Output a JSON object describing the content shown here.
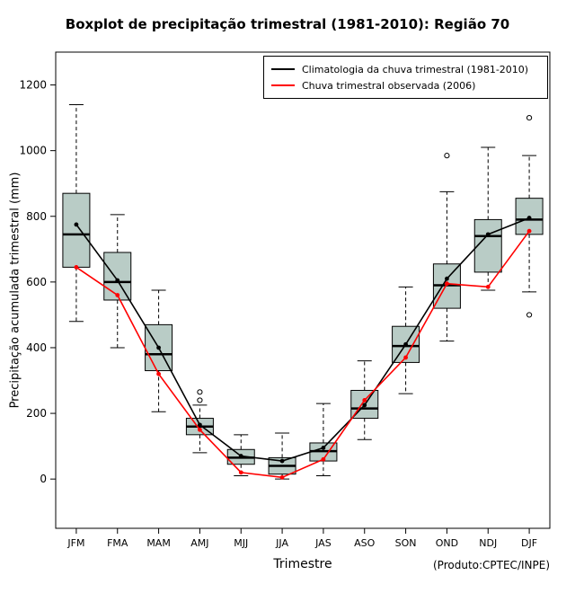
{
  "chart_data": {
    "type": "boxplot",
    "title": "Boxplot de precipitação trimestral (1981-2010): Região 70",
    "xlabel": "Trimestre",
    "ylabel": "Precipitação acumulada trimestral (mm)",
    "credit": "(Produto:CPTEC/INPE)",
    "categories": [
      "JFM",
      "FMA",
      "MAM",
      "AMJ",
      "MJJ",
      "JJA",
      "JAS",
      "ASO",
      "SON",
      "OND",
      "NDJ",
      "DJF"
    ],
    "yticks": [
      0,
      200,
      400,
      600,
      800,
      1000,
      1200
    ],
    "ylim": [
      -150,
      1300
    ],
    "grid": false,
    "legend_position": "top-right",
    "box_fill": "#b9ccc6",
    "box_stroke": "#000000",
    "boxes": [
      {
        "low": 480,
        "q1": 645,
        "median": 745,
        "q3": 870,
        "high": 1140,
        "outliers": []
      },
      {
        "low": 400,
        "q1": 545,
        "median": 600,
        "q3": 690,
        "high": 805,
        "outliers": []
      },
      {
        "low": 205,
        "q1": 330,
        "median": 380,
        "q3": 470,
        "high": 575,
        "outliers": []
      },
      {
        "low": 80,
        "q1": 135,
        "median": 160,
        "q3": 185,
        "high": 225,
        "outliers": [
          240,
          265
        ]
      },
      {
        "low": 10,
        "q1": 45,
        "median": 65,
        "q3": 90,
        "high": 135,
        "outliers": []
      },
      {
        "low": 0,
        "q1": 15,
        "median": 40,
        "q3": 65,
        "high": 140,
        "outliers": []
      },
      {
        "low": 10,
        "q1": 55,
        "median": 85,
        "q3": 110,
        "high": 230,
        "outliers": []
      },
      {
        "low": 120,
        "q1": 185,
        "median": 215,
        "q3": 270,
        "high": 360,
        "outliers": []
      },
      {
        "low": 260,
        "q1": 355,
        "median": 405,
        "q3": 465,
        "high": 585,
        "outliers": []
      },
      {
        "low": 420,
        "q1": 520,
        "median": 590,
        "q3": 655,
        "high": 875,
        "outliers": [
          985
        ]
      },
      {
        "low": 575,
        "q1": 630,
        "median": 740,
        "q3": 790,
        "high": 1010,
        "outliers": []
      },
      {
        "low": 570,
        "q1": 745,
        "median": 790,
        "q3": 855,
        "high": 985,
        "outliers": [
          500,
          1100
        ]
      }
    ],
    "series": [
      {
        "name": "Climatologia da chuva trimestral (1981-2010)",
        "color": "#000000",
        "values": [
          775,
          605,
          400,
          165,
          70,
          55,
          95,
          225,
          410,
          610,
          745,
          795
        ]
      },
      {
        "name": "Chuva trimestral observada (2006)",
        "color": "#ff0000",
        "values": [
          645,
          560,
          320,
          150,
          20,
          5,
          60,
          240,
          370,
          595,
          585,
          755
        ]
      }
    ]
  }
}
